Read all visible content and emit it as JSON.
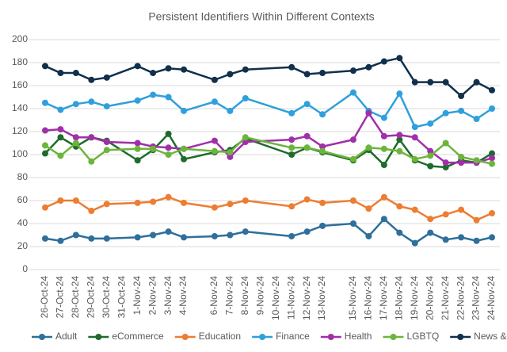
{
  "chart_data": {
    "type": "line",
    "title": "Persistent Identifiers Within Different Contexts",
    "categories": [
      "26-Oct-24",
      "27-Oct-24",
      "28-Oct-24",
      "29-Oct-24",
      "30-Oct-24",
      "31-Oct-24",
      "1-Nov-24",
      "2-Nov-24",
      "3-Nov-24",
      "4-Nov-24",
      null,
      "6-Nov-24",
      "7-Nov-24",
      "8-Nov-24",
      "9-Nov-24",
      "10-Nov-24",
      "11-Nov-24",
      "12-Nov-24",
      "13-Nov-24",
      null,
      "15-Nov-24",
      "16-Nov-24",
      "17-Nov-24",
      "18-Nov-24",
      "19-Nov-24",
      "20-Nov-24",
      "21-Nov-24",
      "22-Nov-24",
      "23-Nov-24",
      "24-Nov-24"
    ],
    "series": [
      {
        "name": "Adult",
        "color": "#2e6f9b",
        "values": [
          27,
          25,
          30,
          27,
          27,
          null,
          28,
          30,
          33,
          28,
          null,
          29,
          30,
          33,
          null,
          null,
          29,
          33,
          38,
          null,
          40,
          29,
          44,
          32,
          23,
          32,
          26,
          28,
          25,
          28
        ]
      },
      {
        "name": "eCommerce",
        "color": "#1f6b2c",
        "values": [
          101,
          115,
          107,
          115,
          112,
          null,
          95,
          104,
          118,
          96,
          null,
          102,
          104,
          114,
          null,
          null,
          100,
          106,
          102,
          null,
          95,
          104,
          91,
          113,
          95,
          90,
          89,
          95,
          93,
          101
        ]
      },
      {
        "name": "Education",
        "color": "#ed7d31",
        "values": [
          54,
          60,
          60,
          51,
          57,
          null,
          58,
          59,
          63,
          58,
          null,
          54,
          57,
          60,
          null,
          null,
          55,
          61,
          58,
          null,
          60,
          53,
          63,
          55,
          52,
          44,
          48,
          52,
          43,
          49
        ]
      },
      {
        "name": "Finance",
        "color": "#2fa0dc",
        "values": [
          145,
          139,
          144,
          146,
          142,
          null,
          147,
          152,
          150,
          138,
          null,
          146,
          138,
          149,
          null,
          null,
          136,
          144,
          135,
          null,
          154,
          138,
          132,
          153,
          124,
          127,
          136,
          138,
          131,
          140
        ]
      },
      {
        "name": "Health",
        "color": "#a12fa8",
        "values": [
          121,
          122,
          115,
          115,
          111,
          null,
          110,
          107,
          106,
          105,
          null,
          112,
          98,
          111,
          null,
          null,
          113,
          116,
          107,
          null,
          113,
          136,
          116,
          117,
          115,
          103,
          93,
          93,
          93,
          97
        ]
      },
      {
        "name": "LGBTQ",
        "color": "#6cb53c",
        "values": [
          108,
          99,
          110,
          94,
          104,
          null,
          105,
          105,
          100,
          105,
          null,
          103,
          102,
          115,
          null,
          null,
          106,
          106,
          103,
          null,
          96,
          106,
          105,
          103,
          96,
          99,
          110,
          98,
          95,
          92
        ]
      },
      {
        "name": "News & Media",
        "color": "#10304c",
        "values": [
          177,
          171,
          171,
          165,
          167,
          null,
          177,
          171,
          175,
          174,
          null,
          165,
          170,
          174,
          null,
          null,
          176,
          170,
          171,
          null,
          173,
          176,
          181,
          184,
          163,
          163,
          163,
          151,
          163,
          156
        ]
      }
    ],
    "ylim": [
      0,
      200
    ],
    "yticks": [
      0,
      20,
      40,
      60,
      80,
      100,
      120,
      140,
      160,
      180,
      200
    ],
    "grid": true,
    "connect_gaps": true,
    "legend": "bottom"
  }
}
